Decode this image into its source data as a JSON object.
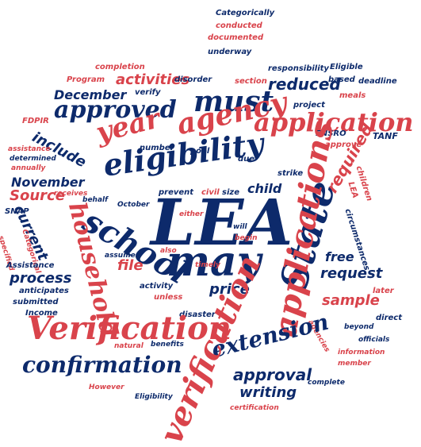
{
  "palette": {
    "red": "#d9434b",
    "navy": "#0d2a6b",
    "background": "#ffffff"
  },
  "words": {
    "lea": "LEA",
    "may": "may",
    "school": "school",
    "verification_big": "Verification",
    "verification_vert": "verification",
    "eligibility": "eligibility",
    "state": "State",
    "applications": "applications",
    "application": "application",
    "agency": "agency",
    "must": "must",
    "year": "year",
    "household": "household",
    "extension": "extension",
    "confirmation": "confirmation",
    "approved": "approved",
    "reduced": "reduced",
    "required": "required",
    "activities": "activities",
    "december": "December",
    "include": "include",
    "november": "November",
    "current": "current",
    "source": "Source",
    "child": "child",
    "process": "process",
    "file": "file",
    "request": "request",
    "free": "free",
    "sample": "sample",
    "price": "price",
    "approval": "approval",
    "writing": "writing",
    "categorically": "Categorically",
    "conducted": "conducted",
    "documented": "documented",
    "underway": "underway",
    "completion": "completion",
    "responsibility": "responsibility",
    "eligible": "Eligible",
    "based": "based",
    "disorder": "disorder",
    "section": "section",
    "deadline": "deadline",
    "program": "Program",
    "verify": "verify",
    "meals": "meals",
    "project": "project",
    "fdpir": "FDPIR",
    "fnsro": "FNSRO",
    "tanf": "TANF",
    "pool": "pool",
    "approve": "approve",
    "assistance": "assistance",
    "number": "number",
    "determined": "determined",
    "due": "due",
    "strike": "strike",
    "children": "children",
    "annually": "annually",
    "lea_small": "LEA",
    "receives": "receives",
    "civil": "civil",
    "size": "size",
    "behalf": "behalf",
    "prevent": "prevent",
    "snap": "SNAP",
    "october": "October",
    "either": "either",
    "will": "will",
    "circumstances": "circumstances",
    "specified": "specified",
    "categorical": "Categorical",
    "begin": "begin",
    "also": "also",
    "assumes": "assumes",
    "assistance_cap": "Assistance",
    "submitted": "submitted",
    "timely": "timely",
    "anticipates": "anticipates",
    "later": "later",
    "activity": "activity",
    "unless": "unless",
    "income": "Income",
    "disaster": "disaster",
    "agencies": "agencies",
    "direct": "direct",
    "beyond": "beyond",
    "natural": "natural",
    "benefits": "benefits",
    "officials": "officials",
    "information": "information",
    "member": "member",
    "however": "However",
    "complete": "complete",
    "eligibility_small": "Eligibility",
    "certification": "certification"
  }
}
